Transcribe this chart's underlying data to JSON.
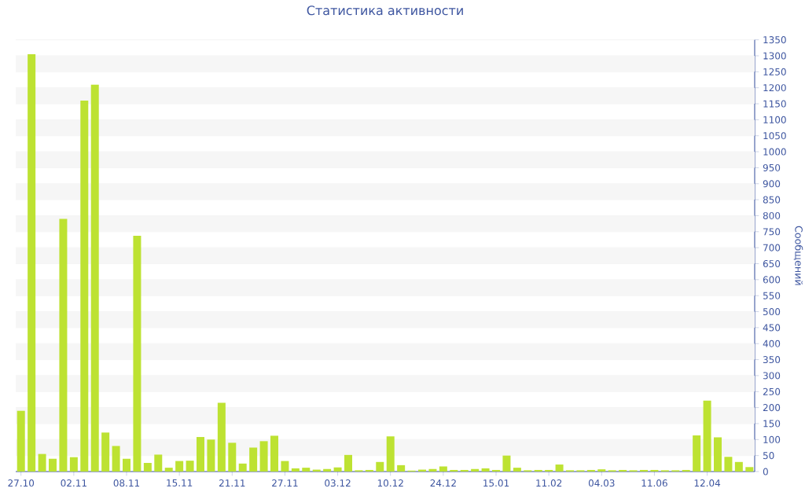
{
  "chart_data": {
    "type": "bar",
    "title": "Статистика активности",
    "ylabel": "Сообщений",
    "categories": [
      "27.10",
      null,
      null,
      null,
      null,
      "02.11",
      null,
      null,
      null,
      null,
      "08.11",
      null,
      null,
      null,
      null,
      "15.11",
      null,
      null,
      null,
      null,
      "21.11",
      null,
      null,
      null,
      null,
      "27.11",
      null,
      null,
      null,
      null,
      "03.12",
      null,
      null,
      null,
      null,
      "10.12",
      null,
      null,
      null,
      null,
      "24.12",
      null,
      null,
      null,
      null,
      "15.01",
      null,
      null,
      null,
      null,
      "11.02",
      null,
      null,
      null,
      null,
      "04.03",
      null,
      null,
      null,
      null,
      "11.06",
      null,
      null,
      null,
      null,
      "12.04",
      null,
      null,
      null,
      null
    ],
    "values": [
      190,
      1305,
      55,
      40,
      790,
      45,
      1160,
      1210,
      122,
      80,
      40,
      737,
      27,
      53,
      12,
      33,
      34,
      108,
      100,
      215,
      90,
      25,
      75,
      95,
      112,
      33,
      10,
      12,
      6,
      8,
      13,
      52,
      4,
      5,
      30,
      110,
      20,
      3,
      6,
      8,
      16,
      5,
      5,
      8,
      10,
      5,
      50,
      12,
      4,
      5,
      5,
      22,
      4,
      4,
      5,
      7,
      4,
      5,
      4,
      5,
      5,
      4,
      4,
      5,
      113,
      222,
      107,
      46,
      30,
      14
    ],
    "color": "#bde232",
    "ylim": [
      0,
      1350
    ],
    "yticks": [
      0,
      50,
      100,
      150,
      200,
      250,
      300,
      350,
      400,
      450,
      500,
      550,
      600,
      650,
      700,
      750,
      800,
      850,
      900,
      950,
      1000,
      1050,
      1100,
      1150,
      1200,
      1250,
      1300,
      1350
    ],
    "grid": "y"
  }
}
